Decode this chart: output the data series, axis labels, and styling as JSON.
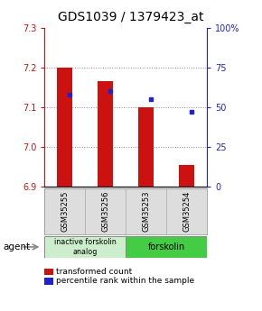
{
  "title": "GDS1039 / 1379423_at",
  "samples": [
    "GSM35255",
    "GSM35256",
    "GSM35253",
    "GSM35254"
  ],
  "bar_values": [
    7.2,
    7.165,
    7.1,
    6.955
  ],
  "bar_base": 6.9,
  "percentile_values": [
    58,
    60,
    55,
    47
  ],
  "ylim_left": [
    6.9,
    7.3
  ],
  "ylim_right": [
    0,
    100
  ],
  "yticks_left": [
    6.9,
    7.0,
    7.1,
    7.2,
    7.3
  ],
  "yticks_right": [
    0,
    25,
    50,
    75,
    100
  ],
  "ytick_labels_right": [
    "0",
    "25",
    "50",
    "75",
    "100%"
  ],
  "bar_color": "#cc1111",
  "dot_color": "#2222cc",
  "grid_color": "#888888",
  "agent_groups": [
    {
      "label": "inactive forskolin\nanalog",
      "spans": [
        0,
        2
      ],
      "color": "#cceecc"
    },
    {
      "label": "forskolin",
      "spans": [
        2,
        4
      ],
      "color": "#44cc44"
    }
  ],
  "legend_red_label": "transformed count",
  "legend_blue_label": "percentile rank within the sample",
  "agent_label": "agent",
  "title_fontsize": 10,
  "tick_fontsize": 7,
  "sample_fontsize": 6,
  "legend_fontsize": 6.5
}
